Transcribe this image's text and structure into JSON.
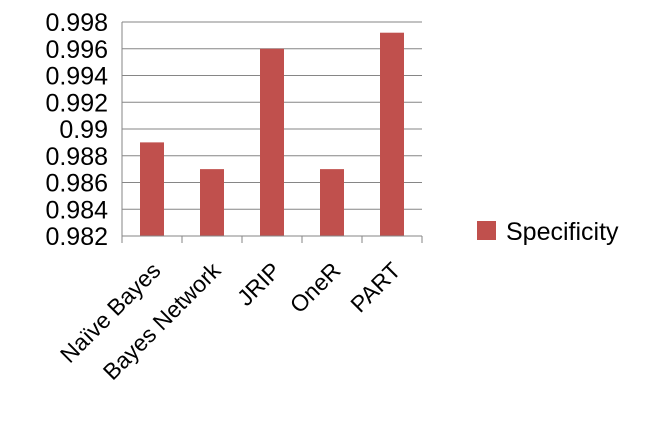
{
  "chart_data": {
    "type": "bar",
    "categories": [
      "Naïve Bayes",
      "Bayes Network",
      "JRIP",
      "OneR",
      "PART"
    ],
    "series": [
      {
        "name": "Specificity",
        "values": [
          0.989,
          0.987,
          0.996,
          0.987,
          0.9972
        ],
        "color": "#C0504D"
      }
    ],
    "y_ticks": [
      "0.982",
      "0.984",
      "0.986",
      "0.988",
      "0.99",
      "0.992",
      "0.994",
      "0.996",
      "0.998"
    ],
    "ylim": [
      0.982,
      0.998
    ],
    "grid": "horizontal",
    "legend_position": "right",
    "title": "",
    "xlabel": "",
    "ylabel": ""
  }
}
